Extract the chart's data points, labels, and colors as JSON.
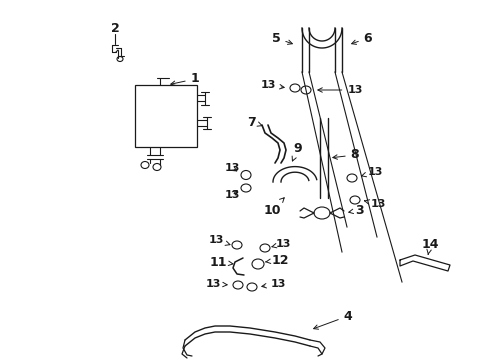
{
  "bg_color": "#ffffff",
  "line_color": "#1a1a1a",
  "figsize": [
    4.89,
    3.6
  ],
  "dpi": 100
}
